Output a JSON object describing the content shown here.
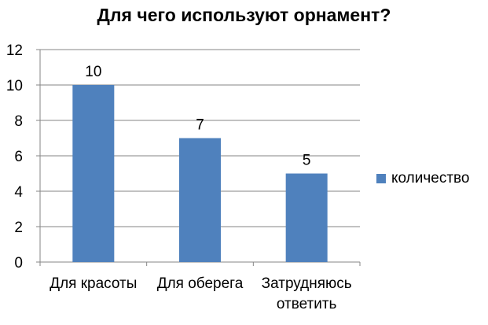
{
  "chart_data": {
    "type": "bar",
    "title": "Для чего используют орнамент?",
    "categories": [
      "Для красоты",
      "Для оберега",
      "Затрудняюсь ответить"
    ],
    "series": [
      {
        "name": "количество",
        "values": [
          10,
          7,
          5
        ],
        "color": "#4F81BD"
      }
    ],
    "data_labels": [
      "10",
      "7",
      "5"
    ],
    "yticks": [
      "0",
      "2",
      "4",
      "6",
      "8",
      "10",
      "12"
    ],
    "ylim": [
      0,
      12
    ],
    "xlabel": "",
    "ylabel": "",
    "grid": true,
    "legend_position": "right"
  }
}
